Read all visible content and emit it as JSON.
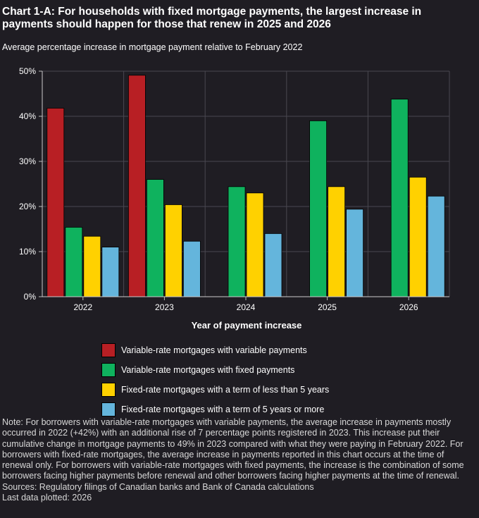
{
  "title": "Chart 1-A: For households with fixed mortgage payments, the largest increase in payments should happen for those that renew in 2025 and 2026",
  "subtitle": "Average percentage increase in mortgage payment relative to February 2022",
  "note": "Note: For borrowers with variable-rate mortgages with variable payments, the average increase in payments mostly occurred in 2022 (+42%) with an additional rise of 7 percentage points registered in 2023. This increase put their cumulative change in mortgage payments to 49% in 2023 compared with what they were paying in February 2022. For borrowers with fixed-rate mortgages, the average increase in payments reported in this chart occurs at the time of renewal only. For borrowers with variable-rate mortgages with fixed payments, the increase is the combination of some borrowers facing higher payments before renewal and other borrowers facing higher payments at the time of renewal.",
  "sources": "Sources: Regulatory filings of Canadian banks and Bank of Canada calculations",
  "last_data": "Last data plotted: 2026",
  "chart_data": {
    "type": "bar",
    "title": "Chart 1-A: For households with fixed mortgage payments, the largest increase in payments should happen for those that renew in 2025 and 2026",
    "subtitle": "Average percentage increase in mortgage payment relative to February 2022",
    "xlabel": "Year of payment increase",
    "ylabel": "",
    "categories": [
      "2022",
      "2023",
      "2024",
      "2025",
      "2026"
    ],
    "ylim": [
      0,
      50
    ],
    "yticks": [
      0,
      10,
      20,
      30,
      40,
      50
    ],
    "ytick_labels": [
      "0%",
      "10%",
      "20%",
      "30%",
      "40%",
      "50%"
    ],
    "grid": true,
    "legend_position": "bottom",
    "series": [
      {
        "name": "Variable-rate mortgages with variable payments",
        "color": "#b81f24",
        "values": [
          41.8,
          49.1,
          null,
          null,
          null
        ]
      },
      {
        "name": "Variable-rate mortgages with fixed payments",
        "color": "#0fb25e",
        "values": [
          15.4,
          26.0,
          24.4,
          39.0,
          43.8
        ]
      },
      {
        "name": "Fixed-rate mortgages with a term of less than 5 years",
        "color": "#ffd100",
        "values": [
          13.4,
          20.4,
          23.0,
          24.4,
          26.5
        ]
      },
      {
        "name": "Fixed-rate mortgages with a term of 5 years or more",
        "color": "#64b5dc",
        "values": [
          11.0,
          12.3,
          14.0,
          19.4,
          22.3
        ]
      }
    ]
  }
}
